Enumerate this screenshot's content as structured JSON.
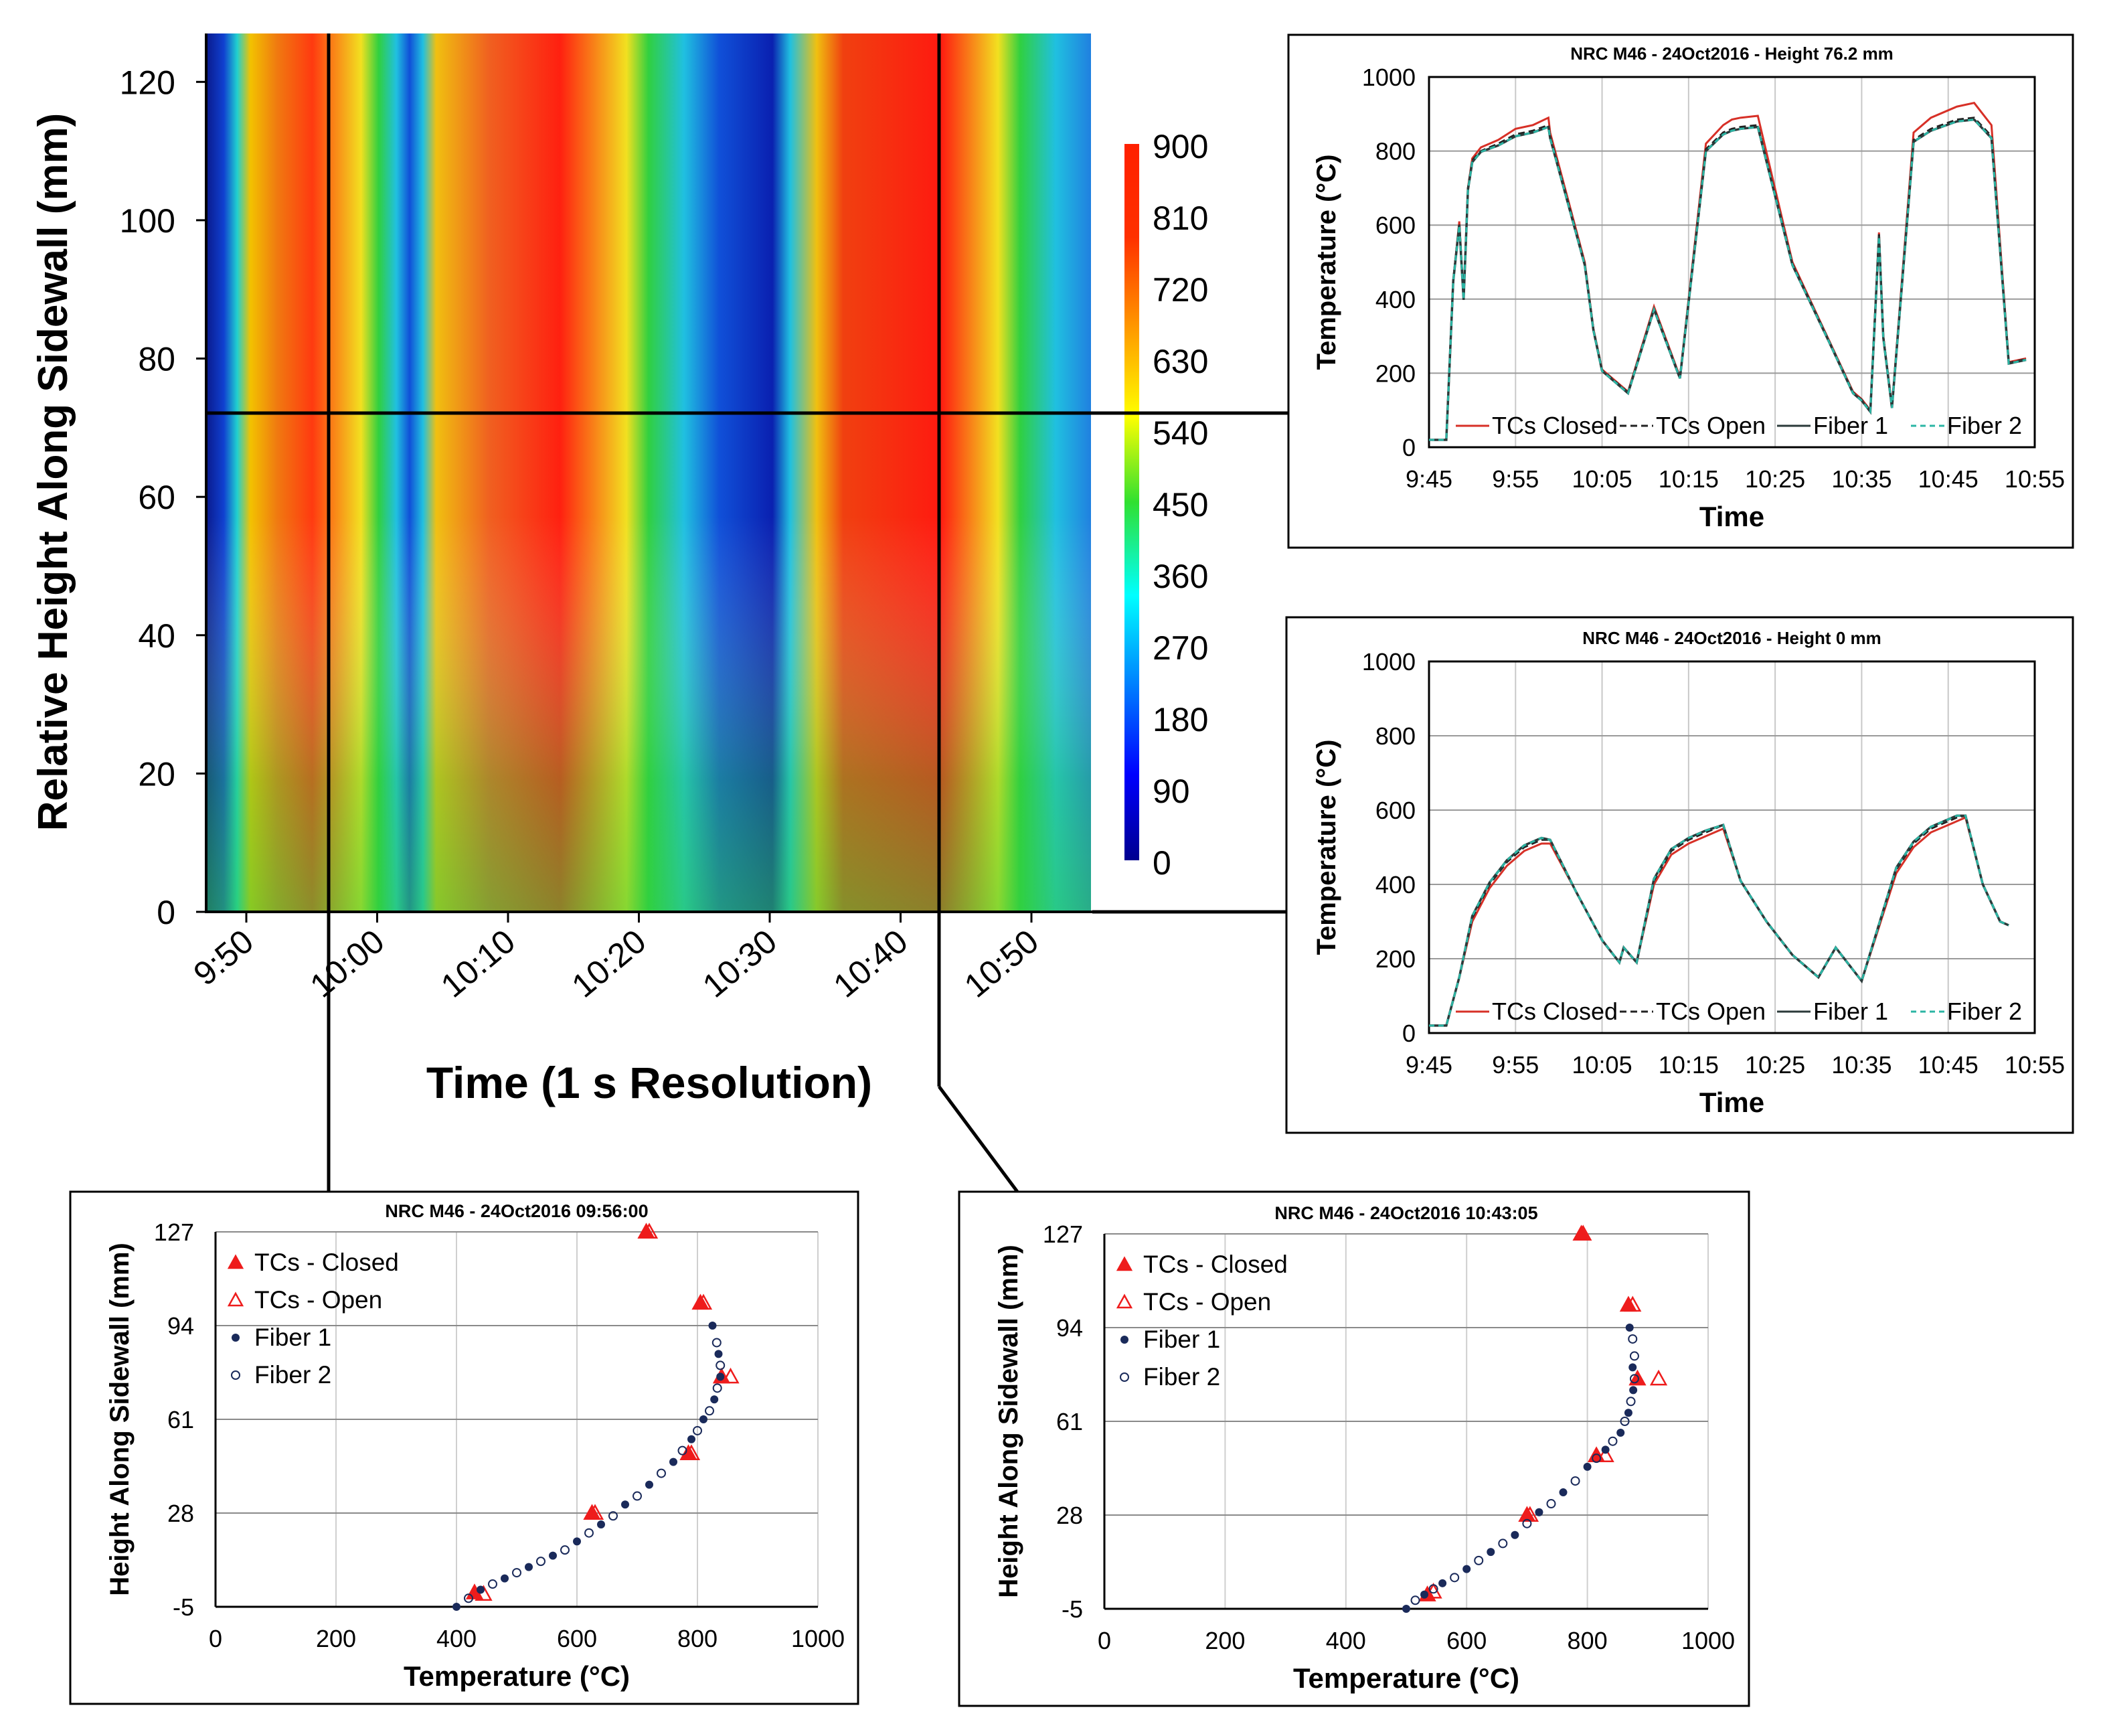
{
  "heatmap": {
    "xlabel": "Time (1 s Resolution)",
    "ylabel": "Relative Height Along Sidewall (mm)",
    "x_ticks": [
      "9:50",
      "10:00",
      "10:10",
      "10:20",
      "10:30",
      "10:40",
      "10:50"
    ],
    "y_ticks": [
      "0",
      "20",
      "40",
      "60",
      "80",
      "100",
      "120"
    ],
    "colorbar_ticks": [
      "0",
      "90",
      "180",
      "270",
      "360",
      "450",
      "540",
      "630",
      "720",
      "810",
      "900"
    ]
  },
  "chart_data": [
    {
      "type": "heatmap",
      "xlabel": "Time (1 s Resolution)",
      "ylabel": "Relative Height Along Sidewall (mm)",
      "x_range": [
        "9:47",
        "10:55"
      ],
      "ylim": [
        0,
        127
      ],
      "colorbar_range": [
        0,
        900
      ],
      "colormap": "jet",
      "cursor_lines": {
        "times": [
          "9:56",
          "10:43"
        ],
        "height": 76.2
      }
    },
    {
      "type": "line",
      "title": "NRC M46 - 24Oct2016 - Height 76.2 mm",
      "xlabel": "Time",
      "ylabel": "Temperature (°C)",
      "x_ticks": [
        "9:45",
        "9:55",
        "10:05",
        "10:15",
        "10:25",
        "10:35",
        "10:45",
        "10:55"
      ],
      "y_ticks": [
        "0",
        "200",
        "400",
        "600",
        "800",
        "1000"
      ],
      "ylim": [
        0,
        1000
      ],
      "grid": true,
      "legend": [
        "TCs Closed",
        "TCs Open",
        "Fiber 1",
        "Fiber 2"
      ],
      "x_minutes": [
        0,
        2,
        2.8,
        3.5,
        4,
        4.5,
        5,
        6,
        8,
        10,
        12,
        13.8,
        14,
        18,
        19,
        20,
        23,
        26,
        29,
        32,
        34,
        35,
        36,
        38,
        42,
        46,
        48,
        49,
        50,
        51,
        52,
        52.5,
        53.5,
        56,
        58,
        61,
        63,
        64,
        65,
        67,
        69
      ],
      "series": [
        {
          "name": "TCs Closed",
          "color": "#d73027",
          "values": [
            20,
            20,
            450,
            610,
            400,
            700,
            780,
            810,
            830,
            860,
            870,
            890,
            850,
            500,
            320,
            210,
            150,
            380,
            190,
            820,
            870,
            885,
            890,
            895,
            500,
            300,
            200,
            150,
            130,
            100,
            580,
            300,
            110,
            850,
            890,
            920,
            930,
            900,
            870,
            230,
            240
          ]
        },
        {
          "name": "TCs Open",
          "color": "#222222",
          "values": [
            20,
            20,
            450,
            605,
            400,
            700,
            775,
            800,
            820,
            845,
            855,
            870,
            840,
            495,
            318,
            208,
            148,
            375,
            188,
            805,
            850,
            860,
            865,
            870,
            495,
            298,
            198,
            148,
            128,
            98,
            575,
            298,
            108,
            830,
            860,
            885,
            890,
            865,
            840,
            228,
            238
          ]
        },
        {
          "name": "Fiber 1",
          "color": "#2b3a3a",
          "values": [
            20,
            20,
            448,
            600,
            398,
            695,
            770,
            798,
            815,
            840,
            850,
            865,
            835,
            492,
            316,
            206,
            146,
            372,
            186,
            800,
            845,
            855,
            860,
            865,
            492,
            296,
            196,
            146,
            126,
            96,
            570,
            296,
            106,
            825,
            855,
            880,
            885,
            860,
            835,
            226,
            236
          ]
        },
        {
          "name": "Fiber 2",
          "color": "#2bb5a4",
          "values": [
            20,
            20,
            448,
            600,
            398,
            695,
            770,
            798,
            815,
            840,
            850,
            865,
            835,
            492,
            316,
            206,
            146,
            372,
            186,
            800,
            845,
            855,
            860,
            865,
            492,
            296,
            196,
            146,
            126,
            96,
            570,
            296,
            106,
            825,
            855,
            880,
            885,
            860,
            835,
            226,
            236
          ]
        }
      ]
    },
    {
      "type": "line",
      "title": "NRC M46 - 24Oct2016 - Height 0 mm",
      "xlabel": "Time",
      "ylabel": "Temperature (°C)",
      "x_ticks": [
        "9:45",
        "9:55",
        "10:05",
        "10:15",
        "10:25",
        "10:35",
        "10:45",
        "10:55"
      ],
      "y_ticks": [
        "0",
        "200",
        "400",
        "600",
        "800",
        "1000"
      ],
      "ylim": [
        0,
        1000
      ],
      "grid": true,
      "legend": [
        "TCs Closed",
        "TCs Open",
        "Fiber 1",
        "Fiber 2"
      ],
      "x_minutes": [
        0,
        2,
        3.5,
        5,
        7,
        9,
        11,
        13,
        14,
        17,
        20,
        22,
        22.5,
        24,
        26,
        28,
        30,
        32,
        34,
        36,
        39,
        42,
        45,
        47,
        48,
        50,
        54,
        56,
        58,
        60,
        61,
        62,
        64,
        66,
        67
      ],
      "series": [
        {
          "name": "TCs Closed",
          "color": "#d73027",
          "values": [
            20,
            20,
            150,
            300,
            390,
            450,
            490,
            510,
            510,
            380,
            250,
            190,
            230,
            190,
            400,
            480,
            510,
            530,
            550,
            410,
            300,
            210,
            150,
            230,
            200,
            140,
            430,
            500,
            540,
            560,
            570,
            580,
            400,
            300,
            290
          ]
        },
        {
          "name": "TCs Open",
          "color": "#222222",
          "values": [
            20,
            20,
            150,
            310,
            400,
            460,
            500,
            520,
            520,
            380,
            250,
            190,
            230,
            190,
            410,
            490,
            520,
            540,
            560,
            410,
            300,
            210,
            150,
            230,
            200,
            140,
            440,
            510,
            550,
            570,
            580,
            585,
            400,
            300,
            290
          ]
        },
        {
          "name": "Fiber 1",
          "color": "#2b3a3a",
          "values": [
            20,
            20,
            150,
            315,
            405,
            465,
            505,
            525,
            520,
            380,
            250,
            190,
            230,
            190,
            415,
            495,
            525,
            545,
            560,
            410,
            300,
            210,
            150,
            230,
            200,
            140,
            445,
            515,
            555,
            575,
            585,
            585,
            400,
            300,
            290
          ]
        },
        {
          "name": "Fiber 2",
          "color": "#2bb5a4",
          "values": [
            20,
            20,
            150,
            315,
            405,
            465,
            505,
            525,
            520,
            380,
            250,
            190,
            230,
            190,
            415,
            495,
            525,
            545,
            560,
            410,
            300,
            210,
            150,
            230,
            200,
            140,
            445,
            515,
            555,
            575,
            585,
            585,
            400,
            300,
            290
          ]
        }
      ]
    },
    {
      "type": "scatter",
      "title": "NRC M46 - 24Oct2016 09:56:00",
      "xlabel": "Temperature (°C)",
      "ylabel": "Height Along Sidewall (mm)",
      "x_ticks": [
        "0",
        "200",
        "400",
        "600",
        "800",
        "1000"
      ],
      "y_ticks": [
        "-5",
        "28",
        "61",
        "94",
        "127"
      ],
      "xlim": [
        0,
        1000
      ],
      "ylim": [
        -5,
        127
      ],
      "grid": true,
      "legend": [
        "TCs - Closed",
        "TCs - Open",
        "Fiber 1",
        "Fiber 2"
      ],
      "series": [
        {
          "name": "TCs - Closed",
          "marker": "filled-triangle",
          "color": "#ee1c1c",
          "points": [
            [
              715,
              127
            ],
            [
              805,
              102
            ],
            [
              840,
              76
            ],
            [
              785,
              49
            ],
            [
              625,
              28
            ],
            [
              430,
              0
            ]
          ]
        },
        {
          "name": "TCs - Open",
          "marker": "open-triangle",
          "color": "#ee1c1c",
          "points": [
            [
              720,
              127
            ],
            [
              810,
              102
            ],
            [
              855,
              76
            ],
            [
              790,
              49
            ],
            [
              630,
              28
            ],
            [
              445,
              -0.5
            ]
          ]
        },
        {
          "name": "Fiber 1",
          "marker": "filled-circle",
          "color": "#1a2a5a",
          "points": [
            [
              400,
              -5
            ],
            [
              440,
              1
            ],
            [
              480,
              5
            ],
            [
              520,
              9
            ],
            [
              560,
              13
            ],
            [
              600,
              18
            ],
            [
              640,
              24
            ],
            [
              680,
              31
            ],
            [
              720,
              38
            ],
            [
              760,
              46
            ],
            [
              790,
              54
            ],
            [
              810,
              61
            ],
            [
              828,
              68
            ],
            [
              838,
              76
            ],
            [
              835,
              84
            ],
            [
              825,
              94
            ]
          ]
        },
        {
          "name": "Fiber 2",
          "marker": "open-circle",
          "color": "#1a2a5a",
          "points": [
            [
              420,
              -2
            ],
            [
              460,
              3
            ],
            [
              500,
              7
            ],
            [
              540,
              11
            ],
            [
              580,
              15
            ],
            [
              620,
              21
            ],
            [
              660,
              27
            ],
            [
              700,
              34
            ],
            [
              740,
              42
            ],
            [
              775,
              50
            ],
            [
              800,
              57
            ],
            [
              820,
              64
            ],
            [
              833,
              72
            ],
            [
              838,
              80
            ],
            [
              832,
              88
            ]
          ]
        }
      ]
    },
    {
      "type": "scatter",
      "title": "NRC M46 - 24Oct2016 10:43:05",
      "xlabel": "Temperature (°C)",
      "ylabel": "Height Along Sidewall (mm)",
      "x_ticks": [
        "0",
        "200",
        "400",
        "600",
        "800",
        "1000"
      ],
      "y_ticks": [
        "-5",
        "28",
        "61",
        "94",
        "127"
      ],
      "xlim": [
        0,
        1000
      ],
      "ylim": [
        -5,
        127
      ],
      "grid": true,
      "legend": [
        "TCs - Closed",
        "TCs - Open",
        "Fiber 1",
        "Fiber 2"
      ],
      "series": [
        {
          "name": "TCs - Closed",
          "marker": "filled-triangle",
          "color": "#ee1c1c",
          "points": [
            [
              790,
              127
            ],
            [
              868,
              102
            ],
            [
              883,
              76
            ],
            [
              815,
              49
            ],
            [
              700,
              28
            ],
            [
              535,
              0
            ]
          ]
        },
        {
          "name": "TCs - Open",
          "marker": "open-triangle",
          "color": "#ee1c1c",
          "points": [
            [
              793,
              127
            ],
            [
              875,
              102
            ],
            [
              918,
              76
            ],
            [
              830,
              49
            ],
            [
              705,
              28
            ],
            [
              545,
              1
            ]
          ]
        },
        {
          "name": "Fiber 1",
          "marker": "filled-circle",
          "color": "#1a2a5a",
          "points": [
            [
              500,
              -5
            ],
            [
              530,
              0
            ],
            [
              560,
              4
            ],
            [
              600,
              9
            ],
            [
              640,
              15
            ],
            [
              680,
              21
            ],
            [
              720,
              29
            ],
            [
              760,
              36
            ],
            [
              800,
              45
            ],
            [
              830,
              51
            ],
            [
              855,
              57
            ],
            [
              868,
              64
            ],
            [
              876,
              72
            ],
            [
              875,
              80
            ],
            [
              870,
              94
            ]
          ]
        },
        {
          "name": "Fiber 2",
          "marker": "open-circle",
          "color": "#1a2a5a",
          "points": [
            [
              515,
              -2
            ],
            [
              545,
              2
            ],
            [
              580,
              6
            ],
            [
              620,
              12
            ],
            [
              660,
              18
            ],
            [
              700,
              25
            ],
            [
              740,
              32
            ],
            [
              780,
              40
            ],
            [
              815,
              48
            ],
            [
              842,
              54
            ],
            [
              862,
              61
            ],
            [
              872,
              68
            ],
            [
              878,
              76
            ],
            [
              878,
              84
            ],
            [
              875,
              90
            ]
          ]
        }
      ]
    }
  ]
}
